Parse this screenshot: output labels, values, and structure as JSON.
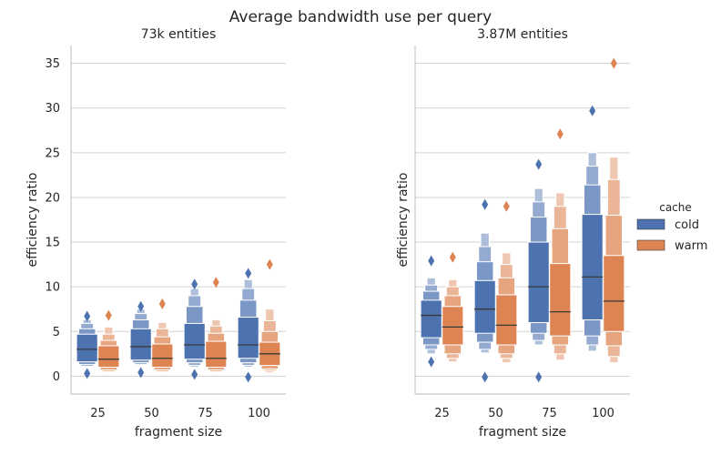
{
  "figure": {
    "suptitle": "Average bandwidth use per query"
  },
  "legend": {
    "title": "cache",
    "entries": [
      {
        "label": "cold",
        "color": "#4c72b0"
      },
      {
        "label": "warm",
        "color": "#dd8452"
      }
    ],
    "placement": "right"
  },
  "chart_data": [
    {
      "type": "boxen",
      "title": "73k entities",
      "xlabel": "fragment size",
      "ylabel": "efficiency ratio",
      "categories": [
        "25",
        "50",
        "75",
        "100"
      ],
      "ylim": [
        -2,
        37
      ],
      "yticks": [
        0,
        5,
        10,
        15,
        20,
        25,
        30,
        35
      ],
      "grid": "y",
      "series": [
        {
          "name": "cold",
          "color": "#4c72b0",
          "boxes": [
            {
              "levels": [
                [
                  1.6,
                  4.7
                ],
                [
                  1.3,
                  5.3
                ],
                [
                  1.1,
                  5.9
                ],
                [
                  1.0,
                  6.3
                ]
              ],
              "median": 3.0,
              "outliers": [
                6.7,
                0.3
              ]
            },
            {
              "levels": [
                [
                  1.8,
                  5.3
                ],
                [
                  1.5,
                  6.3
                ],
                [
                  1.3,
                  7.0
                ],
                [
                  1.2,
                  7.5
                ]
              ],
              "median": 3.3,
              "outliers": [
                7.8,
                0.4
              ]
            },
            {
              "levels": [
                [
                  1.9,
                  5.9
                ],
                [
                  1.5,
                  7.8
                ],
                [
                  1.2,
                  9.0
                ],
                [
                  1.0,
                  9.8
                ]
              ],
              "median": 3.5,
              "outliers": [
                10.3,
                0.2
              ]
            },
            {
              "levels": [
                [
                  2.0,
                  6.6
                ],
                [
                  1.5,
                  8.5
                ],
                [
                  1.2,
                  9.8
                ],
                [
                  1.0,
                  10.8
                ]
              ],
              "median": 3.5,
              "outliers": [
                11.5,
                -0.1
              ]
            }
          ]
        },
        {
          "name": "warm",
          "color": "#dd8452",
          "boxes": [
            {
              "levels": [
                [
                  1.0,
                  3.4
                ],
                [
                  0.7,
                  4.0
                ],
                [
                  0.5,
                  4.7
                ],
                [
                  0.4,
                  5.5
                ]
              ],
              "median": 1.9,
              "outliers": [
                6.8
              ]
            },
            {
              "levels": [
                [
                  1.0,
                  3.6
                ],
                [
                  0.7,
                  4.4
                ],
                [
                  0.5,
                  5.3
                ],
                [
                  0.4,
                  6.0
                ]
              ],
              "median": 2.0,
              "outliers": [
                8.1
              ]
            },
            {
              "levels": [
                [
                  1.0,
                  3.9
                ],
                [
                  0.7,
                  4.8
                ],
                [
                  0.5,
                  5.6
                ],
                [
                  0.4,
                  6.3
                ]
              ],
              "median": 2.0,
              "outliers": [
                10.5
              ]
            },
            {
              "levels": [
                [
                  1.2,
                  3.8
                ],
                [
                  0.8,
                  5.0
                ],
                [
                  0.6,
                  6.2
                ],
                [
                  0.4,
                  7.5
                ]
              ],
              "median": 2.5,
              "outliers": [
                12.5
              ]
            }
          ]
        }
      ]
    },
    {
      "type": "boxen",
      "title": "3.87M entities",
      "xlabel": "fragment size",
      "ylabel": "efficiency ratio",
      "categories": [
        "25",
        "50",
        "75",
        "100"
      ],
      "ylim": [
        -2,
        37
      ],
      "yticks": [
        0,
        5,
        10,
        15,
        20,
        25,
        30,
        35
      ],
      "grid": "y",
      "sharey": true,
      "series": [
        {
          "name": "cold",
          "color": "#4c72b0",
          "boxes": [
            {
              "levels": [
                [
                  4.3,
                  8.5
                ],
                [
                  3.5,
                  9.5
                ],
                [
                  3.0,
                  10.2
                ],
                [
                  2.5,
                  11.0
                ]
              ],
              "median": 6.8,
              "outliers": [
                12.9,
                1.6
              ]
            },
            {
              "levels": [
                [
                  4.8,
                  10.7
                ],
                [
                  3.8,
                  12.8
                ],
                [
                  3.0,
                  14.5
                ],
                [
                  2.6,
                  16.0
                ]
              ],
              "median": 7.5,
              "outliers": [
                19.2,
                -0.1
              ]
            },
            {
              "levels": [
                [
                  6.0,
                  15.0
                ],
                [
                  4.8,
                  17.8
                ],
                [
                  4.0,
                  19.5
                ],
                [
                  3.5,
                  21.0
                ]
              ],
              "median": 10.0,
              "outliers": [
                23.7,
                -0.1
              ]
            },
            {
              "levels": [
                [
                  6.3,
                  18.1
                ],
                [
                  4.5,
                  21.4
                ],
                [
                  3.5,
                  23.5
                ],
                [
                  2.8,
                  25.0
                ]
              ],
              "median": 11.1,
              "outliers": [
                29.7
              ]
            }
          ]
        },
        {
          "name": "warm",
          "color": "#dd8452",
          "boxes": [
            {
              "levels": [
                [
                  3.5,
                  7.8
                ],
                [
                  2.5,
                  9.0
                ],
                [
                  2.0,
                  10.0
                ],
                [
                  1.6,
                  10.8
                ]
              ],
              "median": 5.5,
              "outliers": [
                13.3
              ]
            },
            {
              "levels": [
                [
                  3.5,
                  9.1
                ],
                [
                  2.5,
                  11.0
                ],
                [
                  2.0,
                  12.5
                ],
                [
                  1.5,
                  13.8
                ]
              ],
              "median": 5.7,
              "outliers": [
                19.0
              ]
            },
            {
              "levels": [
                [
                  4.5,
                  12.6
                ],
                [
                  3.5,
                  16.5
                ],
                [
                  2.5,
                  19.0
                ],
                [
                  1.8,
                  20.5
                ]
              ],
              "median": 7.2,
              "outliers": [
                27.1
              ]
            },
            {
              "levels": [
                [
                  5.0,
                  13.5
                ],
                [
                  3.4,
                  18.0
                ],
                [
                  2.2,
                  22.0
                ],
                [
                  1.5,
                  24.5
                ]
              ],
              "median": 8.4,
              "outliers": [
                35.0
              ]
            }
          ]
        }
      ]
    }
  ]
}
